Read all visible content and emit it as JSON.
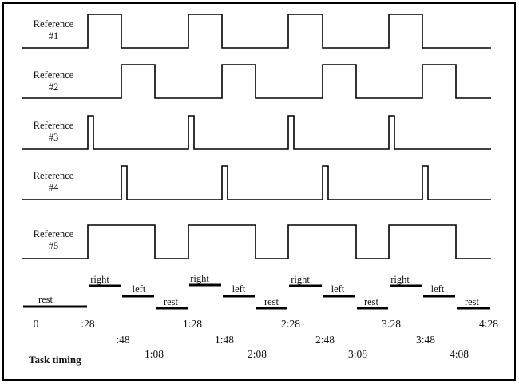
{
  "references": [
    {
      "line1": "Reference",
      "line2": "#1"
    },
    {
      "line1": "Reference",
      "line2": "#2"
    },
    {
      "line1": "Reference",
      "line2": "#3"
    },
    {
      "line1": "Reference",
      "line2": "#4"
    },
    {
      "line1": "Reference",
      "line2": "#5"
    }
  ],
  "task_segments": [
    {
      "label": "rest"
    },
    {
      "label": "right"
    },
    {
      "label": "left"
    },
    {
      "label": "rest"
    },
    {
      "label": "right"
    },
    {
      "label": "left"
    },
    {
      "label": "rest"
    },
    {
      "label": "right"
    },
    {
      "label": "left"
    },
    {
      "label": "rest"
    },
    {
      "label": "right"
    },
    {
      "label": "left"
    },
    {
      "label": "rest"
    }
  ],
  "time_labels": [
    "0",
    ":28",
    ":48",
    "1:08",
    "1:28",
    "1:48",
    "2:08",
    "2:28",
    "2:48",
    "3:08",
    "3:28",
    "3:48",
    "4:08",
    "4:28"
  ],
  "caption": "Task timing"
}
